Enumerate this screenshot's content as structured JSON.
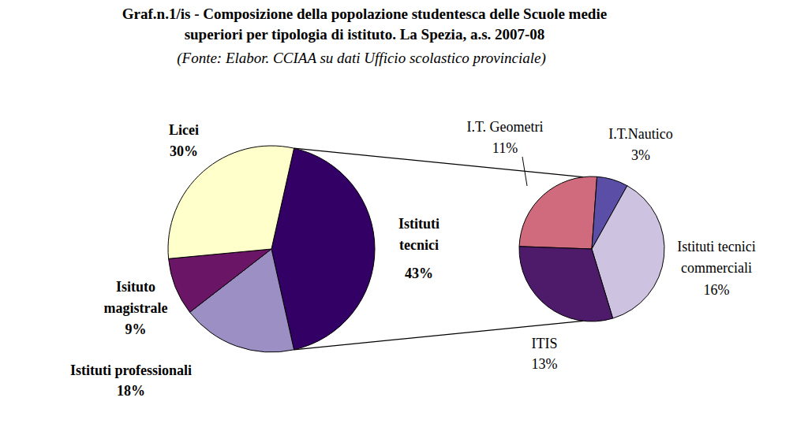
{
  "chart_data": {
    "type": "pie",
    "title": "Graf.n.1/is - Composizione della popolazione studentesca delle Scuole medie superiori per tipologia di istituto. La Spezia, a.s. 2007-08",
    "subtitle": "(Fonte: Elabor. CCIAA su dati Ufficio scolastico provinciale)",
    "categories": [
      "Istituti tecnici",
      "Istituti professionali",
      "Isituto magistrale",
      "Licei"
    ],
    "values": [
      43,
      18,
      9,
      30
    ],
    "value_labels": [
      "43%",
      "18%",
      "9%",
      "30%"
    ],
    "colors": [
      "#330066",
      "#9b8fc4",
      "#6a1566",
      "#ffffcc"
    ],
    "data_labels": true,
    "breakdown": {
      "categories": [
        "I.T. Geometri",
        "I.T.Nautico",
        "Istituti tecnici commerciali",
        "ITIS"
      ],
      "values": [
        11,
        3,
        16,
        13
      ],
      "value_labels": [
        "11%",
        "3%",
        "16%",
        "13%"
      ],
      "colors": [
        "#cf6b7c",
        "#5b4ea6",
        "#cdc2df",
        "#4e1a6a"
      ]
    }
  }
}
